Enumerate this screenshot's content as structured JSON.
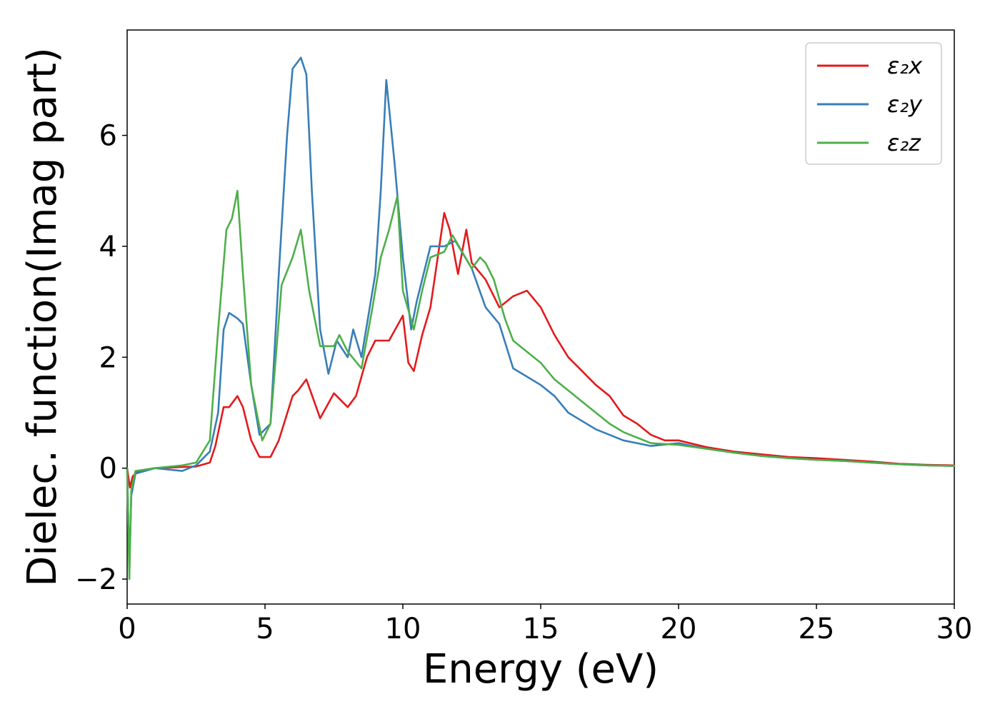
{
  "chart_data": {
    "type": "line",
    "title": "",
    "xlabel": "Energy (eV)",
    "ylabel": "Dielec. function(Imag part)",
    "xlim": [
      0,
      30
    ],
    "ylim": [
      -2.45,
      7.9
    ],
    "xticks": [
      0,
      5,
      10,
      15,
      20,
      25,
      30
    ],
    "xtick_labels": [
      "0",
      "5",
      "10",
      "15",
      "20",
      "25",
      "30"
    ],
    "yticks": [
      -2,
      0,
      2,
      4,
      6
    ],
    "ytick_labels": [
      "−2",
      "0",
      "2",
      "4",
      "6"
    ],
    "grid": false,
    "legend": "top-right",
    "series": [
      {
        "name": "ε₂x",
        "color": "#e41a1c",
        "points": [
          [
            0,
            0
          ],
          [
            0.1,
            -0.35
          ],
          [
            0.2,
            -0.15
          ],
          [
            0.4,
            -0.05
          ],
          [
            1,
            0
          ],
          [
            2,
            0.02
          ],
          [
            2.5,
            0.03
          ],
          [
            3,
            0.1
          ],
          [
            3.2,
            0.4
          ],
          [
            3.5,
            1.1
          ],
          [
            3.7,
            1.1
          ],
          [
            4,
            1.3
          ],
          [
            4.2,
            1.1
          ],
          [
            4.5,
            0.5
          ],
          [
            4.8,
            0.2
          ],
          [
            5.2,
            0.2
          ],
          [
            5.5,
            0.5
          ],
          [
            6,
            1.3
          ],
          [
            6.2,
            1.4
          ],
          [
            6.5,
            1.6
          ],
          [
            7,
            0.9
          ],
          [
            7.5,
            1.35
          ],
          [
            8,
            1.1
          ],
          [
            8.3,
            1.3
          ],
          [
            8.7,
            2.0
          ],
          [
            9,
            2.3
          ],
          [
            9.5,
            2.3
          ],
          [
            10,
            2.75
          ],
          [
            10.2,
            1.9
          ],
          [
            10.4,
            1.75
          ],
          [
            10.7,
            2.4
          ],
          [
            11,
            2.9
          ],
          [
            11.5,
            4.6
          ],
          [
            11.7,
            4.3
          ],
          [
            12,
            3.5
          ],
          [
            12.3,
            4.3
          ],
          [
            12.5,
            3.7
          ],
          [
            13,
            3.4
          ],
          [
            13.5,
            2.9
          ],
          [
            14,
            3.1
          ],
          [
            14.5,
            3.2
          ],
          [
            15,
            2.9
          ],
          [
            15.5,
            2.4
          ],
          [
            16,
            2.0
          ],
          [
            16.5,
            1.75
          ],
          [
            17,
            1.5
          ],
          [
            17.5,
            1.3
          ],
          [
            18,
            0.95
          ],
          [
            18.5,
            0.8
          ],
          [
            19,
            0.6
          ],
          [
            19.5,
            0.5
          ],
          [
            20,
            0.5
          ],
          [
            21,
            0.38
          ],
          [
            22,
            0.3
          ],
          [
            23,
            0.25
          ],
          [
            24,
            0.2
          ],
          [
            25,
            0.18
          ],
          [
            26,
            0.15
          ],
          [
            27,
            0.12
          ],
          [
            28,
            0.08
          ],
          [
            29,
            0.06
          ],
          [
            30,
            0.05
          ]
        ]
      },
      {
        "name": "ε₂y",
        "color": "#377eb8",
        "points": [
          [
            0,
            0
          ],
          [
            0.08,
            -1.8
          ],
          [
            0.15,
            -0.5
          ],
          [
            0.3,
            -0.1
          ],
          [
            1,
            0
          ],
          [
            2,
            -0.05
          ],
          [
            2.5,
            0.05
          ],
          [
            3,
            0.3
          ],
          [
            3.3,
            1.0
          ],
          [
            3.5,
            2.5
          ],
          [
            3.7,
            2.8
          ],
          [
            4,
            2.7
          ],
          [
            4.2,
            2.6
          ],
          [
            4.5,
            1.5
          ],
          [
            4.8,
            0.6
          ],
          [
            5.2,
            0.8
          ],
          [
            5.5,
            3.5
          ],
          [
            5.8,
            6.0
          ],
          [
            6,
            7.2
          ],
          [
            6.3,
            7.4
          ],
          [
            6.5,
            7.1
          ],
          [
            6.7,
            5.0
          ],
          [
            7,
            2.5
          ],
          [
            7.3,
            1.7
          ],
          [
            7.6,
            2.3
          ],
          [
            8,
            2.0
          ],
          [
            8.2,
            2.5
          ],
          [
            8.5,
            2.0
          ],
          [
            9,
            3.5
          ],
          [
            9.2,
            5.0
          ],
          [
            9.4,
            7.0
          ],
          [
            9.7,
            5.5
          ],
          [
            10,
            3.8
          ],
          [
            10.3,
            2.5
          ],
          [
            10.5,
            3.0
          ],
          [
            11,
            4.0
          ],
          [
            11.5,
            4.0
          ],
          [
            11.9,
            4.1
          ],
          [
            12.5,
            3.6
          ],
          [
            13,
            2.9
          ],
          [
            13.5,
            2.6
          ],
          [
            14,
            1.8
          ],
          [
            14.5,
            1.65
          ],
          [
            15,
            1.5
          ],
          [
            15.5,
            1.3
          ],
          [
            16,
            1.0
          ],
          [
            16.5,
            0.85
          ],
          [
            17,
            0.7
          ],
          [
            17.5,
            0.6
          ],
          [
            18,
            0.5
          ],
          [
            19,
            0.4
          ],
          [
            20,
            0.45
          ],
          [
            21,
            0.35
          ],
          [
            22,
            0.28
          ],
          [
            23,
            0.22
          ],
          [
            24,
            0.18
          ],
          [
            25,
            0.15
          ],
          [
            26,
            0.13
          ],
          [
            27,
            0.1
          ],
          [
            28,
            0.07
          ],
          [
            29,
            0.05
          ],
          [
            30,
            0.04
          ]
        ]
      },
      {
        "name": "ε₂z",
        "color": "#4daf4a",
        "points": [
          [
            0,
            0
          ],
          [
            0.08,
            -2.0
          ],
          [
            0.15,
            -0.4
          ],
          [
            0.3,
            -0.05
          ],
          [
            1,
            0
          ],
          [
            2,
            0.05
          ],
          [
            2.5,
            0.1
          ],
          [
            3,
            0.5
          ],
          [
            3.3,
            2.5
          ],
          [
            3.6,
            4.3
          ],
          [
            3.8,
            4.5
          ],
          [
            4,
            5.0
          ],
          [
            4.2,
            3.5
          ],
          [
            4.5,
            1.5
          ],
          [
            4.9,
            0.5
          ],
          [
            5.2,
            0.8
          ],
          [
            5.6,
            3.3
          ],
          [
            6,
            3.8
          ],
          [
            6.3,
            4.3
          ],
          [
            6.6,
            3.2
          ],
          [
            7,
            2.2
          ],
          [
            7.5,
            2.2
          ],
          [
            7.7,
            2.4
          ],
          [
            8,
            2.1
          ],
          [
            8.5,
            1.8
          ],
          [
            8.9,
            2.9
          ],
          [
            9.2,
            3.8
          ],
          [
            9.5,
            4.3
          ],
          [
            9.8,
            4.9
          ],
          [
            10,
            3.2
          ],
          [
            10.4,
            2.5
          ],
          [
            10.7,
            3.2
          ],
          [
            11,
            3.8
          ],
          [
            11.5,
            3.9
          ],
          [
            11.8,
            4.2
          ],
          [
            12.5,
            3.6
          ],
          [
            12.8,
            3.8
          ],
          [
            13,
            3.7
          ],
          [
            13.3,
            3.4
          ],
          [
            13.7,
            2.7
          ],
          [
            14,
            2.3
          ],
          [
            14.5,
            2.1
          ],
          [
            15,
            1.9
          ],
          [
            15.5,
            1.6
          ],
          [
            16,
            1.4
          ],
          [
            16.5,
            1.2
          ],
          [
            17,
            1.0
          ],
          [
            17.5,
            0.8
          ],
          [
            18,
            0.65
          ],
          [
            19,
            0.45
          ],
          [
            20,
            0.42
          ],
          [
            21,
            0.35
          ],
          [
            22,
            0.28
          ],
          [
            23,
            0.22
          ],
          [
            24,
            0.18
          ],
          [
            25,
            0.15
          ],
          [
            26,
            0.13
          ],
          [
            27,
            0.1
          ],
          [
            28,
            0.07
          ],
          [
            29,
            0.05
          ],
          [
            30,
            0.04
          ]
        ]
      }
    ]
  }
}
